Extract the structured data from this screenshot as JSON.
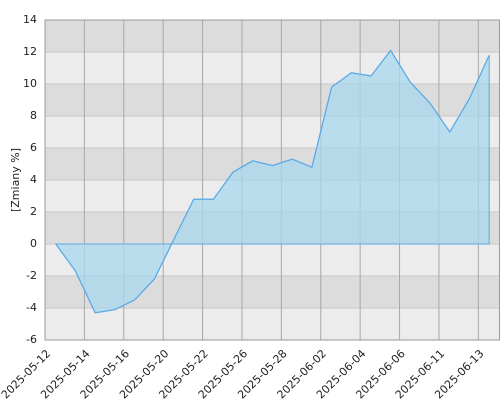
{
  "chart_data": {
    "type": "area",
    "y_label": "[Zmiany %]",
    "x": [
      0,
      1,
      2,
      3,
      4,
      5,
      6,
      7,
      8,
      9,
      10,
      11,
      12,
      13,
      14,
      15,
      16,
      17,
      18,
      19,
      20,
      21,
      22
    ],
    "series": [
      {
        "color": "#5aaae6",
        "fill": "#a8d8ee",
        "values": [
          0,
          -1.7,
          -4.3,
          -4.1,
          -3.5,
          -2.2,
          0.3,
          2.8,
          2.8,
          4.5,
          5.2,
          4.9,
          5.3,
          4.8,
          9.8,
          10.7,
          10.5,
          12.1,
          10.1,
          8.8,
          7.0,
          9.1,
          11.8
        ]
      }
    ],
    "xlim": [
      -0.55,
      22.55
    ],
    "xticks": [
      {
        "value": -0.55,
        "label": "2025-05-12"
      },
      {
        "value": 1.45,
        "label": "2025-05-14"
      },
      {
        "value": 3.45,
        "label": "2025-05-16"
      },
      {
        "value": 5.45,
        "label": "2025-05-20"
      },
      {
        "value": 7.45,
        "label": "2025-05-22"
      },
      {
        "value": 9.45,
        "label": "2025-05-26"
      },
      {
        "value": 11.45,
        "label": "2025-05-28"
      },
      {
        "value": 13.45,
        "label": "2025-06-02"
      },
      {
        "value": 15.45,
        "label": "2025-06-04"
      },
      {
        "value": 17.45,
        "label": "2025-06-06"
      },
      {
        "value": 19.45,
        "label": "2025-06-11"
      },
      {
        "value": 21.45,
        "label": "2025-06-13"
      }
    ],
    "ylim": [
      -6,
      14
    ],
    "yticks": [
      -6,
      -4,
      -2,
      0,
      2,
      4,
      6,
      8,
      10,
      12,
      14
    ],
    "grid": true
  }
}
